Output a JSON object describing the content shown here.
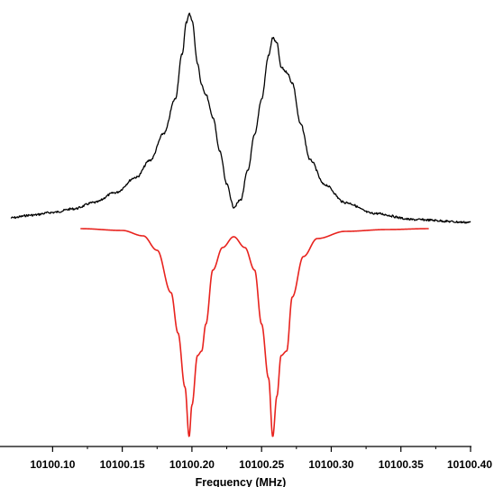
{
  "chart_data": {
    "type": "line",
    "title": "",
    "xlabel": "Frequency (MHz)",
    "ylabel": "",
    "xlim": [
      10100.07,
      10100.4
    ],
    "x_ticks": [
      10100.1,
      10100.15,
      10100.2,
      10100.25,
      10100.3,
      10100.35,
      10100.4
    ],
    "x_tick_labels": [
      "10100.10",
      "10100.15",
      "10100.20",
      "10100.25",
      "10100.30",
      "10100.35",
      "10100.40"
    ],
    "y_axis_visible": false,
    "grid": false,
    "legend": "none",
    "series": [
      {
        "color": "#000000",
        "style": "noisy",
        "points": [
          [
            10100.07,
            242
          ],
          [
            10100.085,
            239
          ],
          [
            10100.1,
            236
          ],
          [
            10100.115,
            232
          ],
          [
            10100.13,
            225
          ],
          [
            10100.145,
            214
          ],
          [
            10100.16,
            197
          ],
          [
            10100.17,
            178
          ],
          [
            10100.18,
            148
          ],
          [
            10100.188,
            110
          ],
          [
            10100.193,
            60
          ],
          [
            10100.196,
            25
          ],
          [
            10100.198,
            15
          ],
          [
            10100.2,
            22
          ],
          [
            10100.204,
            70
          ],
          [
            10100.207,
            95
          ],
          [
            10100.21,
            105
          ],
          [
            10100.215,
            130
          ],
          [
            10100.22,
            168
          ],
          [
            10100.225,
            205
          ],
          [
            10100.23,
            230
          ],
          [
            10100.235,
            222
          ],
          [
            10100.24,
            190
          ],
          [
            10100.245,
            150
          ],
          [
            10100.25,
            110
          ],
          [
            10100.255,
            62
          ],
          [
            10100.258,
            42
          ],
          [
            10100.261,
            48
          ],
          [
            10100.264,
            75
          ],
          [
            10100.268,
            80
          ],
          [
            10100.272,
            92
          ],
          [
            10100.278,
            138
          ],
          [
            10100.285,
            178
          ],
          [
            10100.295,
            205
          ],
          [
            10100.31,
            225
          ],
          [
            10100.33,
            237
          ],
          [
            10100.36,
            244
          ],
          [
            10100.4,
            247
          ]
        ]
      },
      {
        "color": "#e8231e",
        "style": "smooth",
        "points": [
          [
            10100.12,
            254
          ],
          [
            10100.15,
            256
          ],
          [
            10100.165,
            262
          ],
          [
            10100.175,
            278
          ],
          [
            10100.185,
            325
          ],
          [
            10100.19,
            370
          ],
          [
            10100.195,
            430
          ],
          [
            10100.198,
            485
          ],
          [
            10100.2,
            450
          ],
          [
            10100.204,
            395
          ],
          [
            10100.207,
            390
          ],
          [
            10100.21,
            360
          ],
          [
            10100.215,
            300
          ],
          [
            10100.222,
            275
          ],
          [
            10100.23,
            263
          ],
          [
            10100.238,
            275
          ],
          [
            10100.245,
            300
          ],
          [
            10100.25,
            360
          ],
          [
            10100.255,
            420
          ],
          [
            10100.258,
            485
          ],
          [
            10100.261,
            440
          ],
          [
            10100.264,
            395
          ],
          [
            10100.268,
            390
          ],
          [
            10100.272,
            330
          ],
          [
            10100.28,
            285
          ],
          [
            10100.29,
            265
          ],
          [
            10100.31,
            257
          ],
          [
            10100.34,
            255
          ],
          [
            10100.37,
            254
          ]
        ]
      }
    ]
  }
}
